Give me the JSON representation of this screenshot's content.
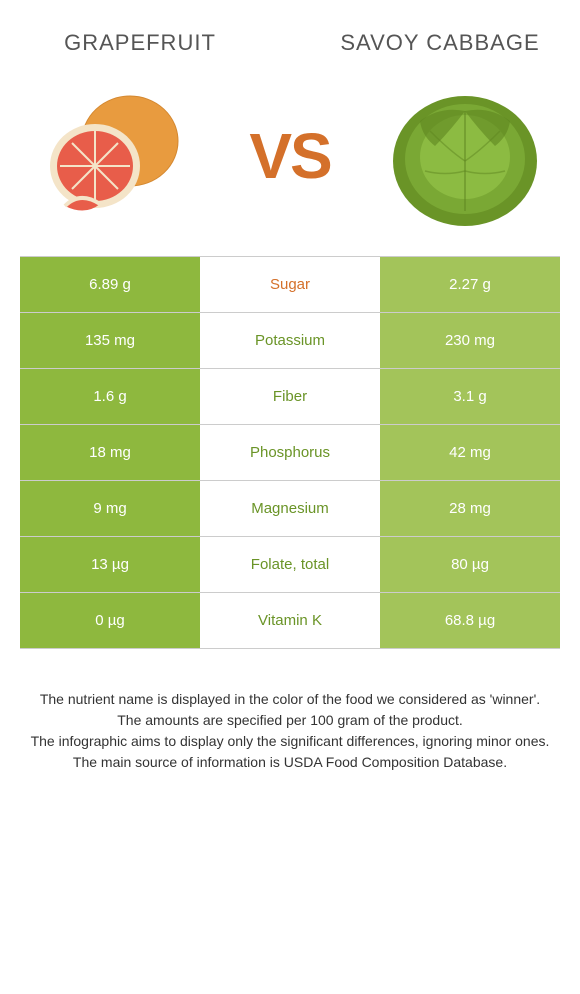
{
  "left_food": "Grapefruit",
  "right_food": "Savoy cabbage",
  "vs_label": "VS",
  "colors": {
    "left_bg": "#8eb83e",
    "right_bg": "#a3c45a",
    "winner_left": "#d4702a",
    "winner_right": "#6a9427",
    "vs": "#d4702a"
  },
  "rows": [
    {
      "label": "Sugar",
      "left": "6.89 g",
      "right": "2.27 g",
      "winner": "left"
    },
    {
      "label": "Potassium",
      "left": "135 mg",
      "right": "230 mg",
      "winner": "right"
    },
    {
      "label": "Fiber",
      "left": "1.6 g",
      "right": "3.1 g",
      "winner": "right"
    },
    {
      "label": "Phosphorus",
      "left": "18 mg",
      "right": "42 mg",
      "winner": "right"
    },
    {
      "label": "Magnesium",
      "left": "9 mg",
      "right": "28 mg",
      "winner": "right"
    },
    {
      "label": "Folate, total",
      "left": "13 µg",
      "right": "80 µg",
      "winner": "right"
    },
    {
      "label": "Vitamin K",
      "left": "0 µg",
      "right": "68.8 µg",
      "winner": "right"
    }
  ],
  "footer": {
    "line1": "The nutrient name is displayed in the color of the food we considered as 'winner'.",
    "line2": "The amounts are specified per 100 gram of the product.",
    "line3": "The infographic aims to display only the significant differences, ignoring minor ones.",
    "line4": "The main source of information is USDA Food Composition Database."
  }
}
